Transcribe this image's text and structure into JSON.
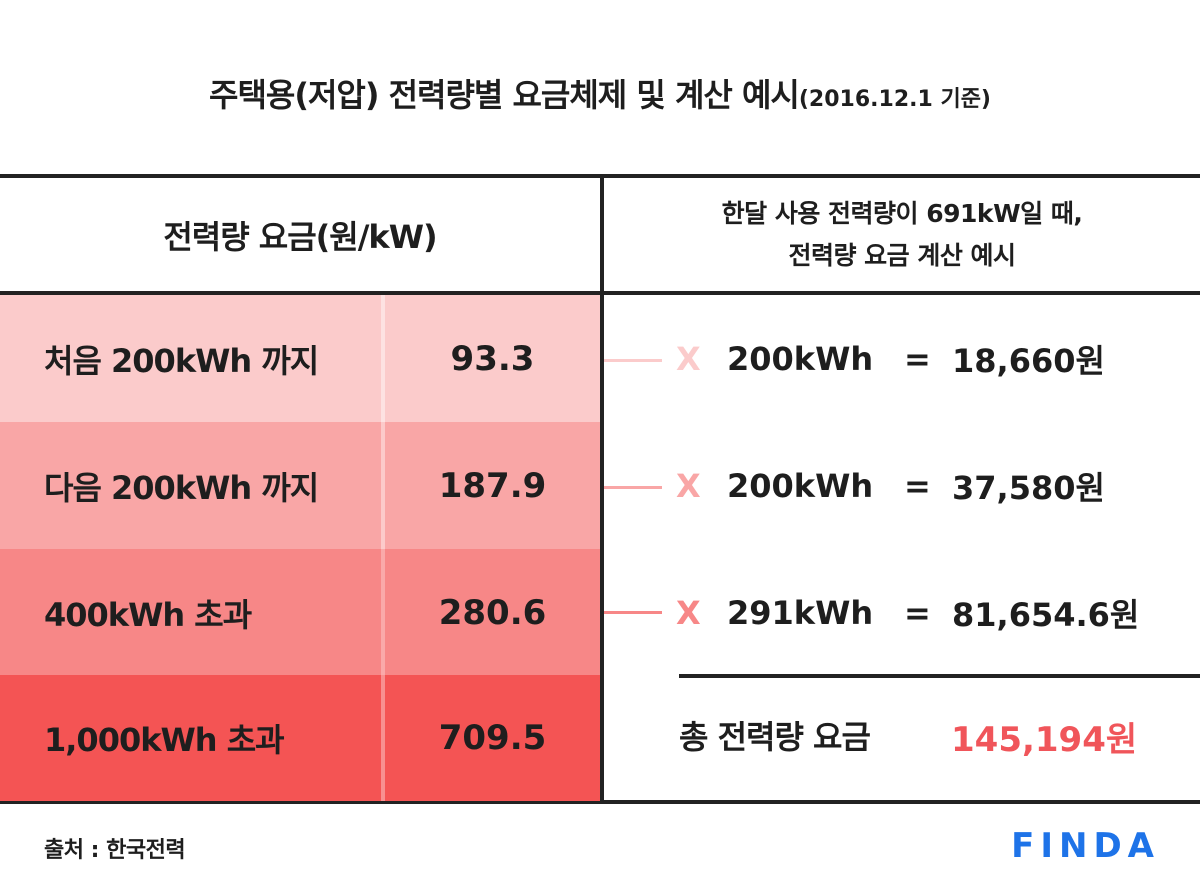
{
  "title": {
    "main": "주택용(저압) 전력량별 요금체제 및 계산 예시",
    "sub": "(2016.12.1 기준)"
  },
  "table": {
    "left_header": "전력량 요금(원/kW)",
    "right_header_line1": "한달 사용 전력량이 691kW일 때,",
    "right_header_line2": "전력량 요금 계산 예시",
    "rows": [
      {
        "tier": "처음 200kWh 까지",
        "rate": "93.3",
        "multiplier": "X",
        "usage": "200kWh",
        "equals": "=",
        "result": "18,660원"
      },
      {
        "tier": "다음 200kWh 까지",
        "rate": "187.9",
        "multiplier": "X",
        "usage": "200kWh",
        "equals": "=",
        "result": "37,580원"
      },
      {
        "tier": "400kWh 초과",
        "rate": "280.6",
        "multiplier": "X",
        "usage": "291kWh",
        "equals": "=",
        "result": "81,654.6원"
      },
      {
        "tier": "1,000kWh 초과",
        "rate": "709.5"
      }
    ],
    "total_label": "총 전력량 요금",
    "total_value": "145,194원"
  },
  "footer": {
    "source": "출처 : 한국전력",
    "logo_text": "FINDA"
  },
  "colors": {
    "tier1": "#fbcbcb",
    "tier2": "#f9a6a6",
    "tier3": "#f78787",
    "tier4": "#f45454",
    "total_accent": "#f0555a",
    "logo": "#1e73e8"
  }
}
